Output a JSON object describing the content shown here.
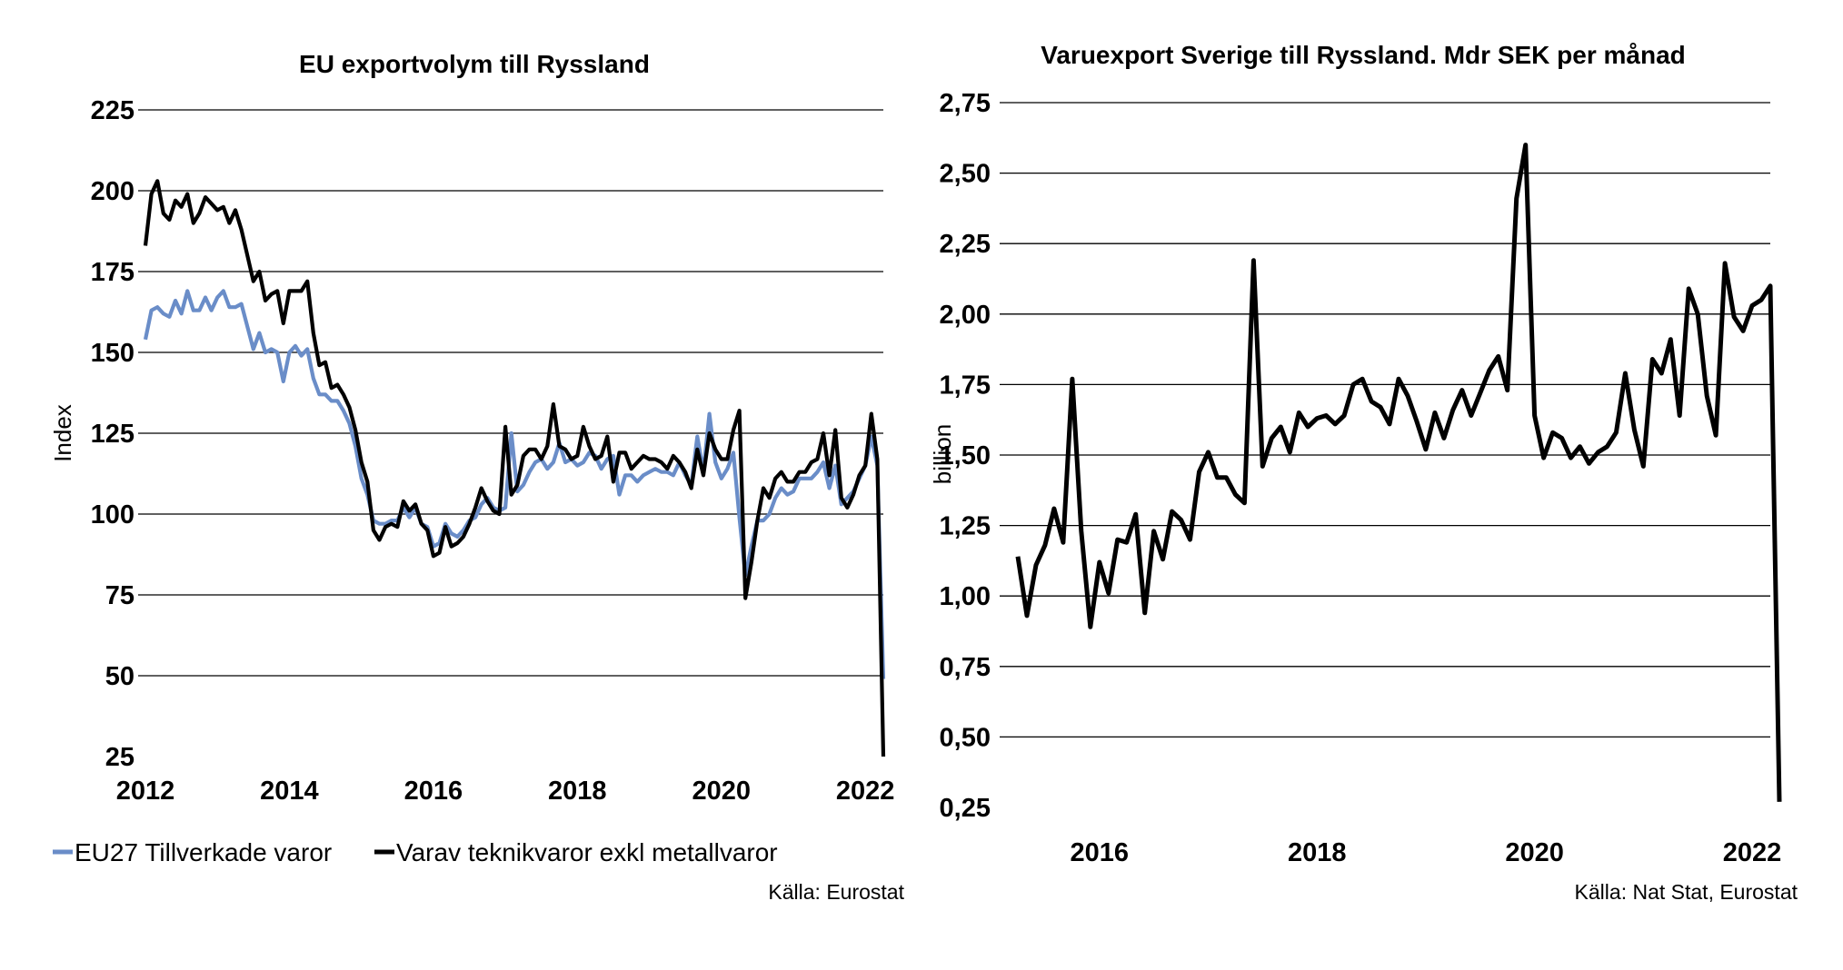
{
  "chart_data": [
    {
      "type": "line",
      "title": "EU exportvolym till Ryssland",
      "xlabel": "",
      "ylabel": "Index",
      "ylim": [
        25,
        225
      ],
      "yticks": [
        "225",
        "200",
        "175",
        "150",
        "125",
        "100",
        "75",
        "50",
        "25"
      ],
      "xticks": [
        "2012",
        "2014",
        "2016",
        "2018",
        "2020",
        "2022"
      ],
      "grid": "horizontal",
      "legend_position": "bottom-left",
      "source": "Källa: Eurostat",
      "x_start": "2012-01",
      "x_step": "month",
      "series": [
        {
          "name": "EU27 Tillverkade varor",
          "color": "#6a8dc8",
          "values": [
            154,
            163,
            164,
            162,
            161,
            166,
            162,
            169,
            163,
            163,
            167,
            163,
            167,
            169,
            164,
            164,
            165,
            158,
            151,
            156,
            150,
            151,
            150,
            141,
            150,
            152,
            149,
            151,
            142,
            137,
            137,
            135,
            135,
            132,
            128,
            121,
            111,
            106,
            98,
            97,
            97,
            98,
            98,
            102,
            99,
            102,
            97,
            96,
            90,
            91,
            97,
            94,
            93,
            95,
            98,
            99,
            103,
            105,
            102,
            101,
            102,
            125,
            107,
            109,
            113,
            116,
            117,
            114,
            116,
            122,
            116,
            117,
            115,
            116,
            119,
            118,
            114,
            117,
            118,
            106,
            112,
            112,
            110,
            112,
            113,
            114,
            113,
            113,
            112,
            116,
            112,
            109,
            124,
            113,
            131,
            116,
            111,
            114,
            119,
            99,
            81,
            90,
            98,
            98,
            100,
            105,
            108,
            106,
            107,
            111,
            111,
            111,
            113,
            116,
            108,
            115,
            103,
            105,
            107,
            111,
            115,
            124,
            115,
            49
          ]
        },
        {
          "name": "Varav teknikvaror exkl metallvaror",
          "color": "#000000",
          "values": [
            183,
            199,
            203,
            193,
            191,
            197,
            195,
            199,
            190,
            193,
            198,
            196,
            194,
            195,
            190,
            194,
            188,
            180,
            172,
            175,
            166,
            168,
            169,
            159,
            169,
            169,
            169,
            172,
            156,
            146,
            147,
            139,
            140,
            137,
            133,
            126,
            116,
            110,
            95,
            92,
            96,
            97,
            96,
            104,
            101,
            103,
            97,
            95,
            87,
            88,
            96,
            90,
            91,
            93,
            97,
            102,
            108,
            104,
            101,
            100,
            127,
            106,
            109,
            118,
            120,
            120,
            117,
            121,
            134,
            121,
            120,
            117,
            118,
            127,
            121,
            117,
            118,
            124,
            110,
            119,
            119,
            114,
            116,
            118,
            117,
            117,
            116,
            114,
            118,
            116,
            113,
            108,
            120,
            112,
            125,
            120,
            117,
            117,
            126,
            132,
            74,
            85,
            98,
            108,
            105,
            111,
            113,
            110,
            110,
            113,
            113,
            116,
            117,
            125,
            112,
            126,
            105,
            102,
            106,
            112,
            115,
            131,
            117,
            25
          ]
        }
      ]
    },
    {
      "type": "line",
      "title": "Varuexport Sverige till Ryssland. Mdr SEK per månad",
      "xlabel": "",
      "ylabel": "billion",
      "ylim": [
        0.25,
        2.75
      ],
      "yticks": [
        "2,75",
        "2,50",
        "2,25",
        "2,00",
        "1,75",
        "1,50",
        "1,25",
        "1,00",
        "0,75",
        "0,50",
        "0,25"
      ],
      "xticks": [
        "2016",
        "2018",
        "2020",
        "2022"
      ],
      "grid": "horizontal",
      "legend_position": "none",
      "source": "Källa: Nat Stat, Eurostat",
      "x_start": "2015-04",
      "x_step": "month",
      "series": [
        {
          "color": "#000000",
          "values": [
            1.14,
            0.93,
            1.11,
            1.18,
            1.31,
            1.19,
            1.77,
            1.23,
            0.89,
            1.12,
            1.01,
            1.2,
            1.19,
            1.29,
            0.94,
            1.23,
            1.13,
            1.3,
            1.27,
            1.2,
            1.44,
            1.51,
            1.42,
            1.42,
            1.36,
            1.33,
            2.19,
            1.46,
            1.56,
            1.6,
            1.51,
            1.65,
            1.6,
            1.63,
            1.64,
            1.61,
            1.64,
            1.75,
            1.77,
            1.69,
            1.67,
            1.61,
            1.77,
            1.71,
            1.62,
            1.52,
            1.65,
            1.56,
            1.66,
            1.73,
            1.64,
            1.72,
            1.8,
            1.85,
            1.73,
            2.41,
            2.6,
            1.64,
            1.49,
            1.58,
            1.56,
            1.49,
            1.53,
            1.47,
            1.51,
            1.53,
            1.58,
            1.79,
            1.59,
            1.46,
            1.84,
            1.79,
            1.91,
            1.64,
            2.09,
            2.0,
            1.71,
            1.57,
            2.18,
            1.99,
            1.94,
            2.03,
            2.05,
            2.1,
            0.27
          ]
        }
      ]
    }
  ]
}
